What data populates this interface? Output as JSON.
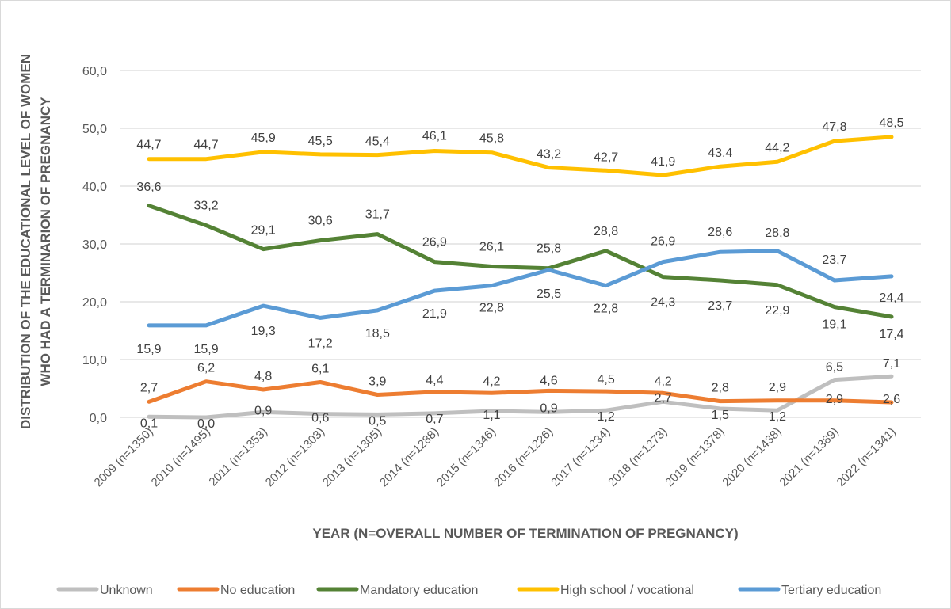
{
  "chart_data": {
    "type": "line",
    "title": "",
    "xlabel": "YEAR (N=OVERALL NUMBER OF TERMINATION OF PREGNANCY)",
    "ylabel_lines": [
      "DISTRIBUTION OF THE EDUCATIONAL LEVEL OF WOMEN",
      "WHO HAD A TERMINARION OF PREGNANCY"
    ],
    "ylim": [
      0,
      60
    ],
    "yticks": [
      0,
      10,
      20,
      30,
      40,
      50,
      60
    ],
    "ytick_labels": [
      "0,0",
      "10,0",
      "20,0",
      "30,0",
      "40,0",
      "50,0",
      "60,0"
    ],
    "grid": true,
    "legend_position": "bottom",
    "categories": [
      "2009 (n=1350)",
      "2010 (n=1495)",
      "2011 (n=1353)",
      "2012 (n=1303)",
      "2013 (n=1305)",
      "2014 (n=1288)",
      "2015 (n=1346)",
      "2016 (n=1226)",
      "2017 (n=1234)",
      "2018 (n=1273)",
      "2019 (n=1378)",
      "2020 (n=1438)",
      "2021 (n=1389)",
      "2022 (n=1341)"
    ],
    "series": [
      {
        "name": "Unknown",
        "color": "#bfbfbf",
        "values": [
          0.1,
          0.0,
          0.9,
          0.6,
          0.5,
          0.7,
          1.1,
          0.9,
          1.2,
          2.7,
          1.5,
          1.2,
          6.5,
          7.1
        ],
        "labels": [
          "0,1",
          "0,0",
          "0,9",
          "0,6",
          "0,5",
          "0,7",
          "1,1",
          "0,9",
          "1,2",
          "2,7",
          "1,5",
          "1,2",
          "6,5",
          "7,1"
        ]
      },
      {
        "name": "No education",
        "color": "#ed7d31",
        "values": [
          2.7,
          6.2,
          4.8,
          6.1,
          3.9,
          4.4,
          4.2,
          4.6,
          4.5,
          4.2,
          2.8,
          2.9,
          2.9,
          2.6
        ],
        "labels": [
          "2,7",
          "6,2",
          "4,8",
          "6,1",
          "3,9",
          "4,4",
          "4,2",
          "4,6",
          "4,5",
          "4,2",
          "2,8",
          "2,9",
          "2,9",
          "2,6"
        ]
      },
      {
        "name": "Mandatory education",
        "color": "#548235",
        "values": [
          36.6,
          33.2,
          29.1,
          30.6,
          31.7,
          26.9,
          26.1,
          25.8,
          28.8,
          24.3,
          23.7,
          22.9,
          19.1,
          17.4
        ],
        "labels": [
          "36,6",
          "33,2",
          "29,1",
          "30,6",
          "31,7",
          "26,9",
          "26,1",
          "25,8",
          "28,8",
          "24,3",
          "23,7",
          "22,9",
          "19,1",
          "17,4"
        ]
      },
      {
        "name": "High school / vocational",
        "color": "#ffc000",
        "values": [
          44.7,
          44.7,
          45.9,
          45.5,
          45.4,
          46.1,
          45.8,
          43.2,
          42.7,
          41.9,
          43.4,
          44.2,
          47.8,
          48.5
        ],
        "labels": [
          "44,7",
          "44,7",
          "45,9",
          "45,5",
          "45,4",
          "46,1",
          "45,8",
          "43,2",
          "42,7",
          "41,9",
          "43,4",
          "44,2",
          "47,8",
          "48,5"
        ]
      },
      {
        "name": "Tertiary education",
        "color": "#5b9bd5",
        "values": [
          15.9,
          15.9,
          19.3,
          17.2,
          18.5,
          21.9,
          22.8,
          25.5,
          22.8,
          26.9,
          28.6,
          28.8,
          23.7,
          24.4
        ],
        "labels": [
          "15,9",
          "15,9",
          "19,3",
          "17,2",
          "18,5",
          "21,9",
          "22,8",
          "25,5",
          "22,8",
          "26,9",
          "28,6",
          "28,8",
          "23,7",
          "24,4"
        ]
      }
    ]
  }
}
